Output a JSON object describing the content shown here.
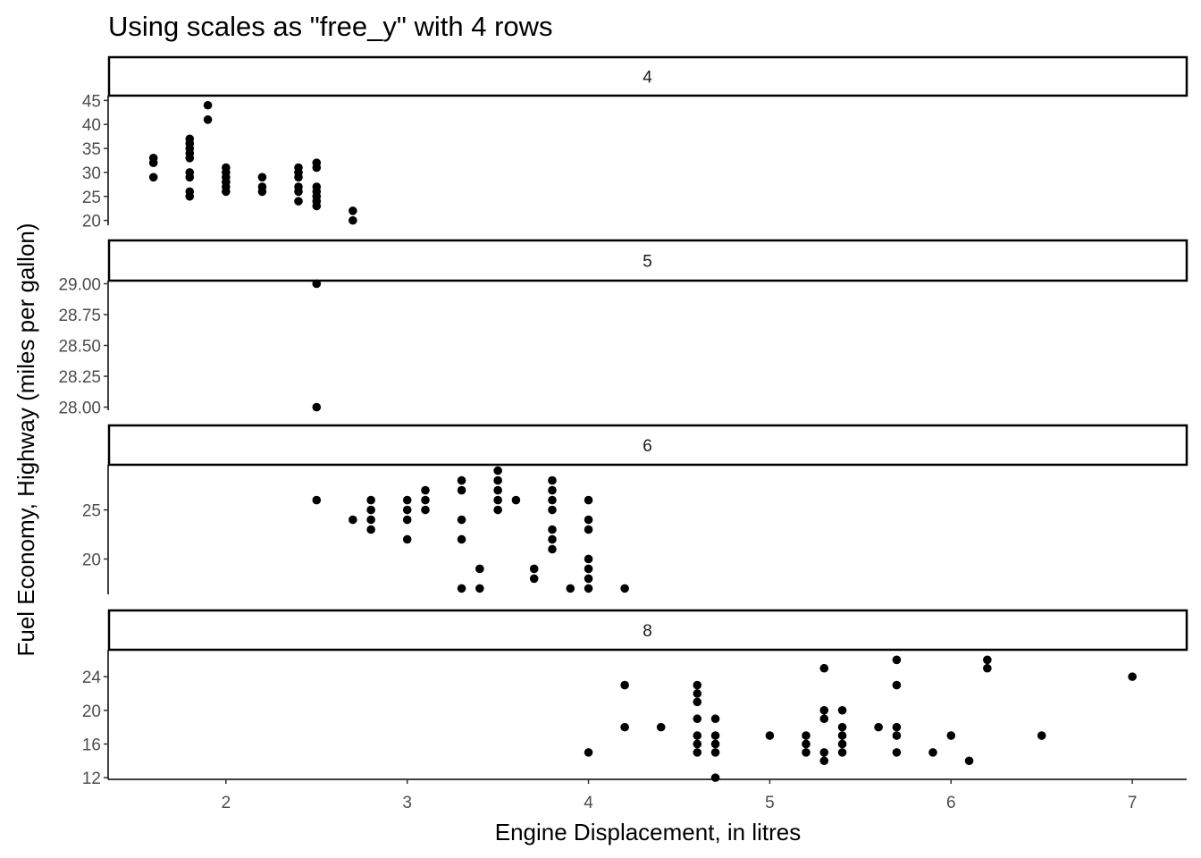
{
  "chart_data": {
    "type": "scatter",
    "title": "Using scales as \"free_y\" with 4 rows",
    "xlabel": "Engine Displacement, in litres",
    "ylabel": "Fuel Economy, Highway (miles per gallon)",
    "xlim": [
      1.35,
      7.3
    ],
    "xticks": [
      2,
      3,
      4,
      5,
      6,
      7
    ],
    "point_color": "#000000",
    "facets": [
      {
        "label": "4",
        "ylim": [
          19,
          46
        ],
        "yticks": [
          20,
          25,
          30,
          35,
          40,
          45
        ],
        "ytick_labels": [
          "20",
          "25",
          "30",
          "35",
          "40",
          "45"
        ],
        "points": [
          [
            1.6,
            33
          ],
          [
            1.6,
            32
          ],
          [
            1.6,
            29
          ],
          [
            1.8,
            37
          ],
          [
            1.8,
            36
          ],
          [
            1.8,
            35
          ],
          [
            1.8,
            34
          ],
          [
            1.8,
            33
          ],
          [
            1.8,
            30
          ],
          [
            1.8,
            29
          ],
          [
            1.8,
            26
          ],
          [
            1.8,
            25
          ],
          [
            1.9,
            44
          ],
          [
            1.9,
            41
          ],
          [
            2.0,
            31
          ],
          [
            2.0,
            30
          ],
          [
            2.0,
            29
          ],
          [
            2.0,
            28
          ],
          [
            2.0,
            27
          ],
          [
            2.0,
            26
          ],
          [
            2.2,
            29
          ],
          [
            2.2,
            27
          ],
          [
            2.2,
            26
          ],
          [
            2.4,
            31
          ],
          [
            2.4,
            30
          ],
          [
            2.4,
            29
          ],
          [
            2.4,
            27
          ],
          [
            2.4,
            26
          ],
          [
            2.4,
            24
          ],
          [
            2.5,
            32
          ],
          [
            2.5,
            31
          ],
          [
            2.5,
            27
          ],
          [
            2.5,
            26
          ],
          [
            2.5,
            25
          ],
          [
            2.5,
            24
          ],
          [
            2.5,
            23
          ],
          [
            2.7,
            22
          ],
          [
            2.7,
            20
          ]
        ]
      },
      {
        "label": "5",
        "ylim": [
          27.975,
          29.025
        ],
        "yticks": [
          28.0,
          28.25,
          28.5,
          28.75,
          29.0
        ],
        "ytick_labels": [
          "28.00",
          "28.25",
          "28.50",
          "28.75",
          "29.00"
        ],
        "points": [
          [
            2.5,
            29
          ],
          [
            2.5,
            28
          ]
        ]
      },
      {
        "label": "6",
        "ylim": [
          16.4,
          29.6
        ],
        "yticks": [
          20,
          25
        ],
        "ytick_labels": [
          "20",
          "25"
        ],
        "points": [
          [
            2.5,
            26
          ],
          [
            2.7,
            24
          ],
          [
            2.8,
            26
          ],
          [
            2.8,
            25
          ],
          [
            2.8,
            24
          ],
          [
            2.8,
            23
          ],
          [
            3.0,
            26
          ],
          [
            3.0,
            25
          ],
          [
            3.0,
            24
          ],
          [
            3.0,
            22
          ],
          [
            3.1,
            27
          ],
          [
            3.1,
            26
          ],
          [
            3.1,
            25
          ],
          [
            3.3,
            28
          ],
          [
            3.3,
            27
          ],
          [
            3.3,
            24
          ],
          [
            3.3,
            22
          ],
          [
            3.3,
            17
          ],
          [
            3.4,
            19
          ],
          [
            3.4,
            17
          ],
          [
            3.5,
            29
          ],
          [
            3.5,
            28
          ],
          [
            3.5,
            27
          ],
          [
            3.5,
            26
          ],
          [
            3.5,
            25
          ],
          [
            3.6,
            26
          ],
          [
            3.7,
            19
          ],
          [
            3.7,
            18
          ],
          [
            3.8,
            28
          ],
          [
            3.8,
            27
          ],
          [
            3.8,
            26
          ],
          [
            3.8,
            25
          ],
          [
            3.8,
            23
          ],
          [
            3.8,
            22
          ],
          [
            3.8,
            21
          ],
          [
            3.9,
            17
          ],
          [
            4.0,
            26
          ],
          [
            4.0,
            24
          ],
          [
            4.0,
            23
          ],
          [
            4.0,
            20
          ],
          [
            4.0,
            19
          ],
          [
            4.0,
            18
          ],
          [
            4.0,
            17
          ],
          [
            4.2,
            17
          ]
        ]
      },
      {
        "label": "8",
        "ylim": [
          11.8,
          27.2
        ],
        "yticks": [
          12,
          16,
          20,
          24
        ],
        "ytick_labels": [
          "12",
          "16",
          "20",
          "24"
        ],
        "points": [
          [
            4.0,
            15
          ],
          [
            4.2,
            23
          ],
          [
            4.2,
            18
          ],
          [
            4.4,
            18
          ],
          [
            4.6,
            23
          ],
          [
            4.6,
            22
          ],
          [
            4.6,
            21
          ],
          [
            4.6,
            19
          ],
          [
            4.6,
            17
          ],
          [
            4.6,
            16
          ],
          [
            4.6,
            15
          ],
          [
            4.7,
            19
          ],
          [
            4.7,
            17
          ],
          [
            4.7,
            16
          ],
          [
            4.7,
            15
          ],
          [
            4.7,
            12
          ],
          [
            5.0,
            17
          ],
          [
            5.2,
            17
          ],
          [
            5.2,
            16
          ],
          [
            5.2,
            15
          ],
          [
            5.3,
            25
          ],
          [
            5.3,
            20
          ],
          [
            5.3,
            19
          ],
          [
            5.3,
            15
          ],
          [
            5.3,
            14
          ],
          [
            5.4,
            20
          ],
          [
            5.4,
            18
          ],
          [
            5.4,
            17
          ],
          [
            5.4,
            16
          ],
          [
            5.4,
            15
          ],
          [
            5.6,
            18
          ],
          [
            5.7,
            26
          ],
          [
            5.7,
            23
          ],
          [
            5.7,
            18
          ],
          [
            5.7,
            17
          ],
          [
            5.7,
            15
          ],
          [
            5.9,
            15
          ],
          [
            6.0,
            17
          ],
          [
            6.1,
            14
          ],
          [
            6.2,
            26
          ],
          [
            6.2,
            25
          ],
          [
            6.5,
            17
          ],
          [
            7.0,
            24
          ]
        ]
      }
    ]
  }
}
